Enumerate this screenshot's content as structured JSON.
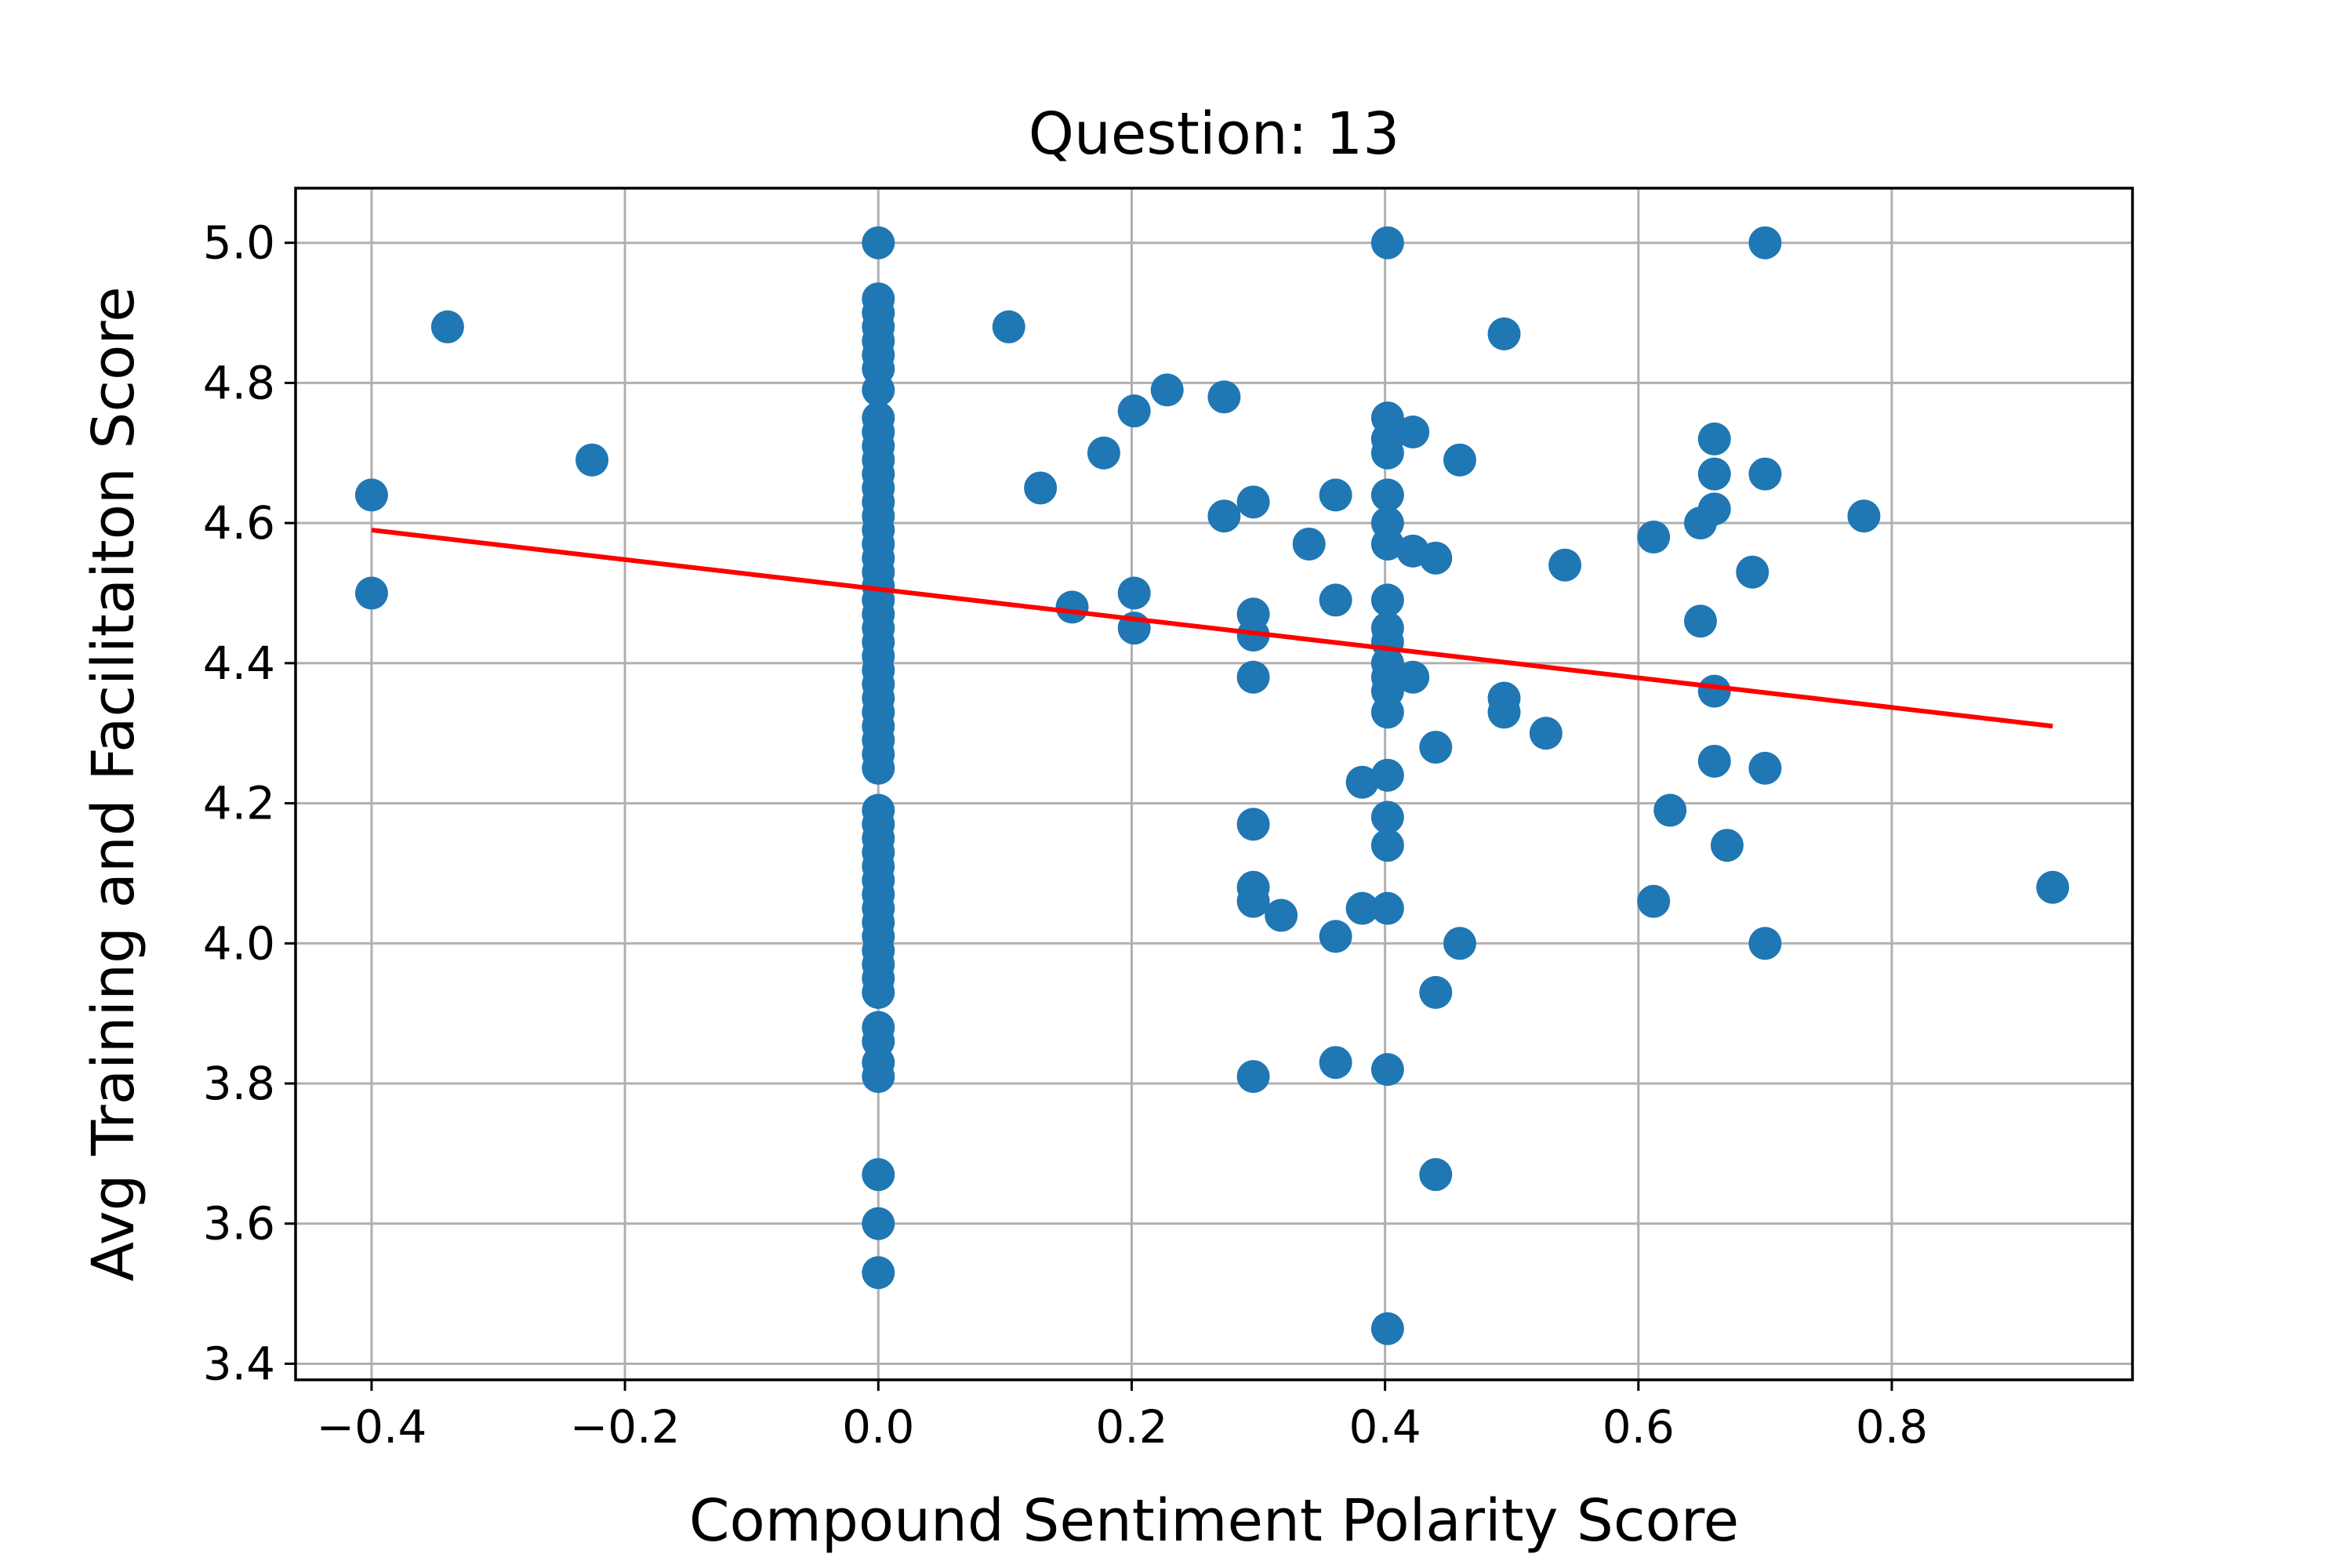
{
  "chart_data": {
    "type": "scatter",
    "title": "Question: 13",
    "xlabel": "Compound Sentiment Polarity Score",
    "ylabel": "Avg Training and Facilitaiton Score",
    "xlim": [
      -0.46,
      0.99
    ],
    "ylim": [
      3.377,
      5.078
    ],
    "xticks": [
      -0.4,
      -0.2,
      0.0,
      0.2,
      0.4,
      0.6,
      0.8
    ],
    "xtick_labels": [
      "−0.4",
      "−0.2",
      "0.0",
      "0.2",
      "0.4",
      "0.6",
      "0.8"
    ],
    "yticks": [
      3.4,
      3.6,
      3.8,
      4.0,
      4.2,
      4.4,
      4.6,
      4.8,
      5.0
    ],
    "ytick_labels": [
      "3.4",
      "3.6",
      "3.8",
      "4.0",
      "4.2",
      "4.4",
      "4.6",
      "4.8",
      "5.0"
    ],
    "grid": true,
    "point_color": "#1f77b4",
    "trend_color": "#ff0000",
    "trend_line": {
      "x": [
        -0.4,
        0.927
      ],
      "y": [
        4.59,
        4.31
      ]
    },
    "points": [
      {
        "x": -0.4,
        "y": 4.64
      },
      {
        "x": -0.4,
        "y": 4.5
      },
      {
        "x": -0.34,
        "y": 4.88
      },
      {
        "x": -0.226,
        "y": 4.69
      },
      {
        "x": 0.0,
        "y": 5.0
      },
      {
        "x": 0.0,
        "y": 4.92
      },
      {
        "x": 0.0,
        "y": 4.9
      },
      {
        "x": 0.0,
        "y": 4.88
      },
      {
        "x": 0.0,
        "y": 4.86
      },
      {
        "x": 0.0,
        "y": 4.84
      },
      {
        "x": 0.0,
        "y": 4.82
      },
      {
        "x": 0.0,
        "y": 4.79
      },
      {
        "x": 0.0,
        "y": 4.75
      },
      {
        "x": 0.0,
        "y": 4.73
      },
      {
        "x": 0.0,
        "y": 4.71
      },
      {
        "x": 0.0,
        "y": 4.69
      },
      {
        "x": 0.0,
        "y": 4.67
      },
      {
        "x": 0.0,
        "y": 4.65
      },
      {
        "x": 0.0,
        "y": 4.63
      },
      {
        "x": 0.0,
        "y": 4.61
      },
      {
        "x": 0.0,
        "y": 4.59
      },
      {
        "x": 0.0,
        "y": 4.57
      },
      {
        "x": 0.0,
        "y": 4.55
      },
      {
        "x": 0.0,
        "y": 4.53
      },
      {
        "x": 0.0,
        "y": 4.51
      },
      {
        "x": 0.0,
        "y": 4.49
      },
      {
        "x": 0.0,
        "y": 4.47
      },
      {
        "x": 0.0,
        "y": 4.45
      },
      {
        "x": 0.0,
        "y": 4.43
      },
      {
        "x": 0.0,
        "y": 4.41
      },
      {
        "x": 0.0,
        "y": 4.39
      },
      {
        "x": 0.0,
        "y": 4.37
      },
      {
        "x": 0.0,
        "y": 4.35
      },
      {
        "x": 0.0,
        "y": 4.33
      },
      {
        "x": 0.0,
        "y": 4.31
      },
      {
        "x": 0.0,
        "y": 4.29
      },
      {
        "x": 0.0,
        "y": 4.27
      },
      {
        "x": 0.0,
        "y": 4.25
      },
      {
        "x": 0.0,
        "y": 4.19
      },
      {
        "x": 0.0,
        "y": 4.17
      },
      {
        "x": 0.0,
        "y": 4.15
      },
      {
        "x": 0.0,
        "y": 4.13
      },
      {
        "x": 0.0,
        "y": 4.11
      },
      {
        "x": 0.0,
        "y": 4.09
      },
      {
        "x": 0.0,
        "y": 4.07
      },
      {
        "x": 0.0,
        "y": 4.05
      },
      {
        "x": 0.0,
        "y": 4.03
      },
      {
        "x": 0.0,
        "y": 4.01
      },
      {
        "x": 0.0,
        "y": 3.99
      },
      {
        "x": 0.0,
        "y": 3.97
      },
      {
        "x": 0.0,
        "y": 3.95
      },
      {
        "x": 0.0,
        "y": 3.93
      },
      {
        "x": 0.0,
        "y": 3.88
      },
      {
        "x": 0.0,
        "y": 3.86
      },
      {
        "x": 0.0,
        "y": 3.83
      },
      {
        "x": 0.0,
        "y": 3.81
      },
      {
        "x": 0.0,
        "y": 3.67
      },
      {
        "x": 0.0,
        "y": 3.6
      },
      {
        "x": 0.0,
        "y": 3.53
      },
      {
        "x": 0.103,
        "y": 4.88
      },
      {
        "x": 0.128,
        "y": 4.65
      },
      {
        "x": 0.153,
        "y": 4.48
      },
      {
        "x": 0.178,
        "y": 4.7
      },
      {
        "x": 0.202,
        "y": 4.76
      },
      {
        "x": 0.202,
        "y": 4.5
      },
      {
        "x": 0.202,
        "y": 4.45
      },
      {
        "x": 0.228,
        "y": 4.79
      },
      {
        "x": 0.273,
        "y": 4.78
      },
      {
        "x": 0.273,
        "y": 4.61
      },
      {
        "x": 0.296,
        "y": 4.63
      },
      {
        "x": 0.296,
        "y": 4.47
      },
      {
        "x": 0.296,
        "y": 4.44
      },
      {
        "x": 0.296,
        "y": 4.38
      },
      {
        "x": 0.296,
        "y": 4.17
      },
      {
        "x": 0.296,
        "y": 4.08
      },
      {
        "x": 0.296,
        "y": 4.06
      },
      {
        "x": 0.318,
        "y": 4.04
      },
      {
        "x": 0.296,
        "y": 3.81
      },
      {
        "x": 0.34,
        "y": 4.57
      },
      {
        "x": 0.361,
        "y": 4.64
      },
      {
        "x": 0.361,
        "y": 4.49
      },
      {
        "x": 0.361,
        "y": 4.01
      },
      {
        "x": 0.361,
        "y": 3.83
      },
      {
        "x": 0.382,
        "y": 4.23
      },
      {
        "x": 0.382,
        "y": 4.05
      },
      {
        "x": 0.402,
        "y": 5.0
      },
      {
        "x": 0.402,
        "y": 4.75
      },
      {
        "x": 0.402,
        "y": 4.72
      },
      {
        "x": 0.402,
        "y": 4.7
      },
      {
        "x": 0.402,
        "y": 4.64
      },
      {
        "x": 0.402,
        "y": 4.6
      },
      {
        "x": 0.402,
        "y": 4.57
      },
      {
        "x": 0.402,
        "y": 4.49
      },
      {
        "x": 0.402,
        "y": 4.45
      },
      {
        "x": 0.402,
        "y": 4.43
      },
      {
        "x": 0.402,
        "y": 4.4
      },
      {
        "x": 0.402,
        "y": 4.38
      },
      {
        "x": 0.402,
        "y": 4.36
      },
      {
        "x": 0.402,
        "y": 4.33
      },
      {
        "x": 0.402,
        "y": 4.24
      },
      {
        "x": 0.402,
        "y": 4.18
      },
      {
        "x": 0.402,
        "y": 4.14
      },
      {
        "x": 0.402,
        "y": 4.05
      },
      {
        "x": 0.402,
        "y": 3.82
      },
      {
        "x": 0.402,
        "y": 3.45
      },
      {
        "x": 0.422,
        "y": 4.73
      },
      {
        "x": 0.422,
        "y": 4.56
      },
      {
        "x": 0.422,
        "y": 4.38
      },
      {
        "x": 0.44,
        "y": 4.55
      },
      {
        "x": 0.44,
        "y": 4.28
      },
      {
        "x": 0.44,
        "y": 3.93
      },
      {
        "x": 0.44,
        "y": 3.67
      },
      {
        "x": 0.459,
        "y": 4.69
      },
      {
        "x": 0.459,
        "y": 4.0
      },
      {
        "x": 0.494,
        "y": 4.87
      },
      {
        "x": 0.494,
        "y": 4.35
      },
      {
        "x": 0.494,
        "y": 4.33
      },
      {
        "x": 0.527,
        "y": 4.3
      },
      {
        "x": 0.542,
        "y": 4.54
      },
      {
        "x": 0.612,
        "y": 4.58
      },
      {
        "x": 0.612,
        "y": 4.06
      },
      {
        "x": 0.625,
        "y": 4.19
      },
      {
        "x": 0.649,
        "y": 4.6
      },
      {
        "x": 0.649,
        "y": 4.46
      },
      {
        "x": 0.66,
        "y": 4.72
      },
      {
        "x": 0.66,
        "y": 4.67
      },
      {
        "x": 0.66,
        "y": 4.62
      },
      {
        "x": 0.66,
        "y": 4.36
      },
      {
        "x": 0.66,
        "y": 4.26
      },
      {
        "x": 0.67,
        "y": 4.14
      },
      {
        "x": 0.69,
        "y": 4.53
      },
      {
        "x": 0.7,
        "y": 5.0
      },
      {
        "x": 0.7,
        "y": 4.67
      },
      {
        "x": 0.7,
        "y": 4.25
      },
      {
        "x": 0.7,
        "y": 4.0
      },
      {
        "x": 0.778,
        "y": 4.61
      },
      {
        "x": 0.927,
        "y": 4.08
      }
    ]
  }
}
